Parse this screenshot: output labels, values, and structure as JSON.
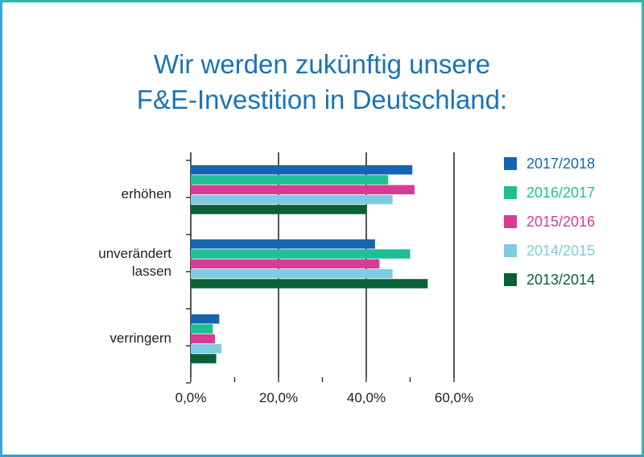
{
  "title_lines": [
    "Wir werden zukünftig unsere",
    "F&E-Investition in Deutschland:"
  ],
  "chart_data": {
    "type": "bar",
    "orientation": "horizontal",
    "title": "Wir werden zukünftig unsere F&E-Investition in Deutschland:",
    "categories": [
      "erhöhen",
      "unverändert lassen",
      "verringern"
    ],
    "category_lines": [
      [
        "erhöhen"
      ],
      [
        "unverändert",
        "lassen"
      ],
      [
        "verringern"
      ]
    ],
    "series": [
      {
        "name": "2017/2018",
        "color": "#1565b3",
        "values": [
          50.5,
          42.0,
          6.5
        ]
      },
      {
        "name": "2016/2017",
        "color": "#1fbf95",
        "values": [
          45.0,
          50.0,
          5.0
        ]
      },
      {
        "name": "2015/2016",
        "color": "#d93a93",
        "values": [
          51.0,
          43.0,
          5.5
        ]
      },
      {
        "name": "2014/2015",
        "color": "#7fcbe0",
        "values": [
          46.0,
          46.0,
          7.0
        ]
      },
      {
        "name": "2013/2014",
        "color": "#0a6036",
        "values": [
          40.0,
          54.0,
          5.8
        ]
      }
    ],
    "xlim": [
      0,
      60
    ],
    "xticks": [
      0,
      20,
      40,
      60
    ],
    "xtick_labels": [
      "0,0%",
      "20,0%",
      "40,0%",
      "60,0%"
    ],
    "grid": true,
    "legend_position": "right"
  }
}
